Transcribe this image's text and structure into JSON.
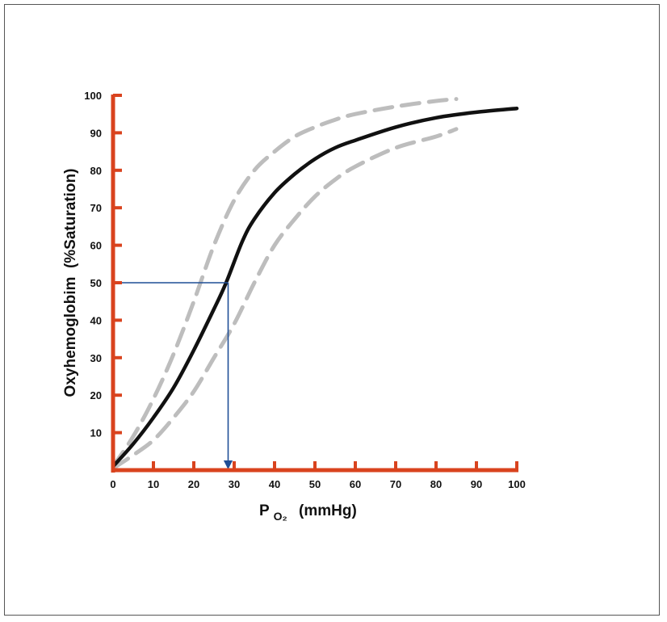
{
  "chart_data": {
    "type": "line",
    "title": "",
    "ylabel": "Oxyhemoglobim  (%Saturation)",
    "xlabel": {
      "main": "P",
      "sub": "O₂",
      "unit": "(mmHg)"
    },
    "xlim": [
      0,
      100
    ],
    "ylim": [
      0,
      100
    ],
    "x_ticks": [
      0,
      10,
      20,
      30,
      40,
      50,
      60,
      70,
      80,
      90,
      100
    ],
    "y_ticks": [
      10,
      20,
      30,
      40,
      50,
      60,
      70,
      80,
      90,
      100
    ],
    "grid": false,
    "axis_color": "#d9431e",
    "series": [
      {
        "style": "solid",
        "color": "#111111",
        "x": [
          0,
          5,
          10,
          15,
          20,
          25,
          28,
          32,
          35,
          40,
          45,
          50,
          55,
          60,
          70,
          80,
          90,
          100
        ],
        "y": [
          1,
          7,
          14,
          22,
          32,
          43,
          50,
          61,
          67,
          74,
          79,
          83,
          86,
          88,
          91.5,
          94,
          95.5,
          96.5
        ]
      },
      {
        "style": "dashed",
        "color": "#bdbdbd",
        "x": [
          0,
          5,
          10,
          15,
          20,
          25,
          30,
          35,
          40,
          45,
          50,
          55,
          60,
          70,
          80,
          85
        ],
        "y": [
          1,
          9,
          19,
          31,
          45,
          60,
          72,
          80,
          85,
          89,
          91.5,
          93.5,
          95,
          97,
          98.5,
          99
        ]
      },
      {
        "style": "dashed",
        "color": "#bdbdbd",
        "x": [
          0,
          5,
          10,
          15,
          20,
          25,
          30,
          35,
          40,
          45,
          50,
          55,
          60,
          70,
          80,
          85
        ],
        "y": [
          0.5,
          4,
          8,
          14,
          21,
          30,
          39,
          50,
          60,
          67,
          73,
          77.5,
          81,
          86,
          89,
          91
        ]
      }
    ],
    "annotation": {
      "color": "#1f4e96",
      "x": 28.5,
      "y": 50
    }
  }
}
